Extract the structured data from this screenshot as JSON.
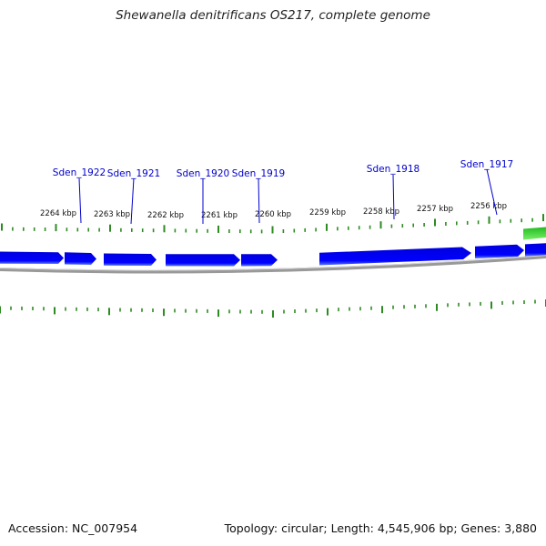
{
  "title": "Shewanella denitrificans OS217, complete genome",
  "footer": {
    "accession": "Accession: NC_007954",
    "summary": "Topology: circular; Length: 4,545,906 bp; Genes: 3,880"
  },
  "colors": {
    "gene_forward": "#0000ee",
    "gene_shadow": "#4a66ff",
    "gene_green": "#33cc33",
    "tick": "#2e8b22",
    "backbone": "#888888",
    "gene_label": "#0000cc"
  },
  "scale_labels": [
    {
      "label": "2264 kbp",
      "kbp": 2264
    },
    {
      "label": "2263 kbp",
      "kbp": 2263
    },
    {
      "label": "2262 kbp",
      "kbp": 2262
    },
    {
      "label": "2261 kbp",
      "kbp": 2261
    },
    {
      "label": "2260 kbp",
      "kbp": 2260
    },
    {
      "label": "2259 kbp",
      "kbp": 2259
    },
    {
      "label": "2258 kbp",
      "kbp": 2258
    },
    {
      "label": "2257 kbp",
      "kbp": 2257
    },
    {
      "label": "2256 kbp",
      "kbp": 2256
    }
  ],
  "gene_labels": [
    {
      "name": "Sden_1922"
    },
    {
      "name": "Sden_1921"
    },
    {
      "name": "Sden_1920"
    },
    {
      "name": "Sden_1919"
    },
    {
      "name": "Sden_1918"
    },
    {
      "name": "Sden_1917"
    }
  ]
}
